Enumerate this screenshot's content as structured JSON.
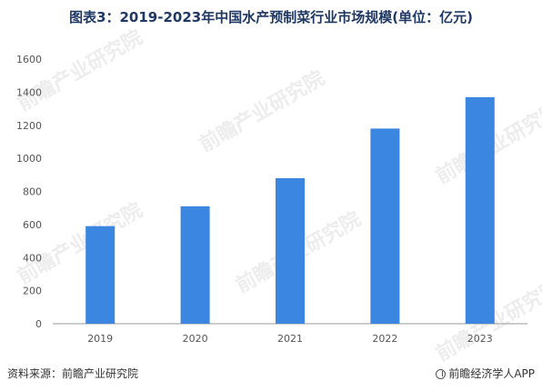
{
  "title": "图表3：2019-2023年中国水产预制菜行业市场规模(单位：亿元)",
  "footer": {
    "source": "资料来源：前瞻产业研究院",
    "brand": "前瞻经济学人APP"
  },
  "watermark": {
    "text": "前瞻产业研究院"
  },
  "colors": {
    "bar": "#3a86e0",
    "title": "#1f3864",
    "axis": "#999999",
    "tick_text": "#555555"
  },
  "chart_data": {
    "type": "bar",
    "categories": [
      "2019",
      "2020",
      "2021",
      "2022",
      "2023"
    ],
    "values": [
      590,
      710,
      880,
      1180,
      1370
    ],
    "ylim": [
      0,
      1600
    ],
    "yticks": [
      0,
      200,
      400,
      600,
      800,
      1000,
      1200,
      1400,
      1600
    ],
    "title": "图表3：2019-2023年中国水产预制菜行业市场规模(单位：亿元)",
    "xlabel": "",
    "ylabel": "",
    "grid": false,
    "legend": "none"
  }
}
